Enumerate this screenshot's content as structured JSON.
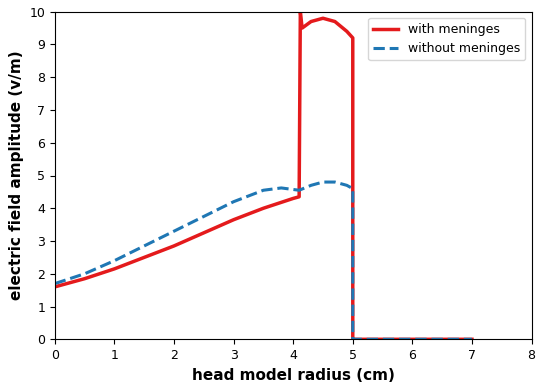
{
  "chart_data": {
    "type": "line",
    "x_label": "head model radius (cm)",
    "y_label": "electric field amplitude (v/m)",
    "series": [
      {
        "name": "with meninges",
        "color": "#e41a1c",
        "line_style": "solid",
        "x": [
          0,
          0.5,
          1,
          1.5,
          2,
          2.5,
          3,
          3.5,
          4,
          4.1,
          4.12,
          4.15,
          4.3,
          4.5,
          4.7,
          4.9,
          5.0,
          5.0,
          6,
          7
        ],
        "values": [
          1.6,
          1.85,
          2.15,
          2.5,
          2.85,
          3.25,
          3.65,
          4.0,
          4.3,
          4.35,
          10,
          9.5,
          9.7,
          9.8,
          9.7,
          9.4,
          9.2,
          0,
          0,
          0
        ]
      },
      {
        "name": "without meninges",
        "color": "#1f77b4",
        "line_style": "dashed",
        "x": [
          0,
          0.5,
          1,
          1.5,
          2,
          2.5,
          3,
          3.5,
          3.8,
          4.1,
          4.3,
          4.5,
          4.7,
          4.9,
          5.0,
          5.0,
          6,
          7
        ],
        "values": [
          1.7,
          2.0,
          2.4,
          2.85,
          3.3,
          3.75,
          4.2,
          4.55,
          4.62,
          4.55,
          4.7,
          4.8,
          4.8,
          4.7,
          4.6,
          0,
          0,
          0
        ]
      }
    ],
    "xlim": [
      0,
      8
    ],
    "xticks": [
      0,
      1,
      2,
      3,
      4,
      5,
      6,
      7,
      8
    ],
    "ylim": [
      0,
      10
    ],
    "yticks": [
      0,
      1,
      2,
      3,
      4,
      5,
      6,
      7,
      8,
      9,
      10
    ],
    "legend": "upper right",
    "grid": false
  }
}
